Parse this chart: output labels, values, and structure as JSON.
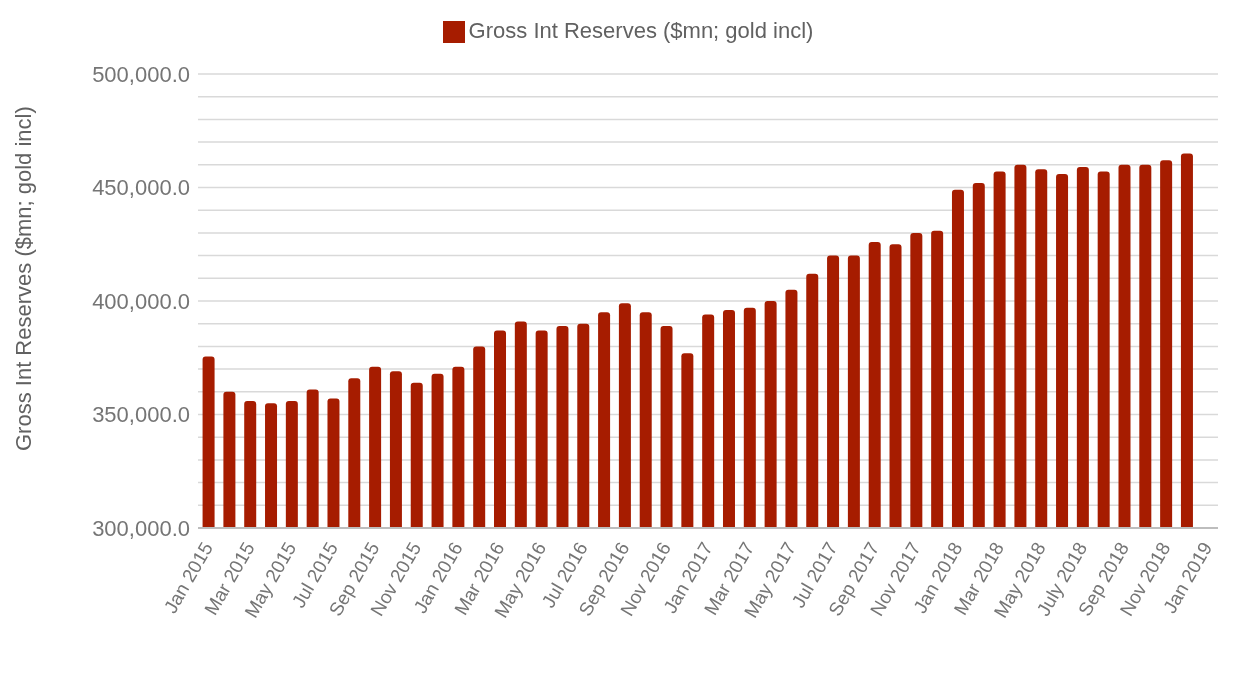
{
  "chart_data": {
    "type": "bar",
    "ylabel": "Gross Int Reserves ($mn; gold incl)",
    "categories": [
      "Jan 2015",
      null,
      "Mar 2015",
      null,
      "May 2015",
      null,
      "Jul 2015",
      null,
      "Sep 2015",
      null,
      "Nov 2015",
      null,
      "Jan 2016",
      null,
      "Mar 2016",
      null,
      "May 2016",
      null,
      "Jul 2016",
      null,
      "Sep 2016",
      null,
      "Nov 2016",
      null,
      "Jan 2017",
      null,
      "Mar 2017",
      null,
      "May 2017",
      null,
      "Jul 2017",
      null,
      "Sep 2017",
      null,
      "Nov 2017",
      null,
      "Jan 2018",
      null,
      "Mar 2018",
      null,
      "May 2018",
      null,
      "July 2018",
      null,
      "Sep 2018",
      null,
      "Nov 2018",
      null,
      "Jan 2019"
    ],
    "series": [
      {
        "name": "Gross Int Reserves ($mn; gold incl)",
        "color": "#a61c00",
        "values": [
          375500,
          360000,
          356000,
          355000,
          356000,
          361000,
          357000,
          366000,
          371000,
          369000,
          364000,
          368000,
          371000,
          380000,
          387000,
          391000,
          387000,
          389000,
          390000,
          395000,
          399000,
          395000,
          389000,
          377000,
          394000,
          396000,
          397000,
          400000,
          405000,
          412000,
          420000,
          420000,
          426000,
          425000,
          430000,
          431000,
          449000,
          452000,
          457000,
          460000,
          458000,
          456000,
          459000,
          457000,
          460000,
          460000,
          462000,
          465000,
          null
        ]
      }
    ],
    "ylim": [
      300000,
      500000
    ],
    "yticks": [
      {
        "value": 300000,
        "label": "300,000.0"
      },
      {
        "value": 310000,
        "label": null
      },
      {
        "value": 320000,
        "label": null
      },
      {
        "value": 330000,
        "label": null
      },
      {
        "value": 340000,
        "label": null
      },
      {
        "value": 350000,
        "label": "350,000.0"
      },
      {
        "value": 360000,
        "label": null
      },
      {
        "value": 370000,
        "label": null
      },
      {
        "value": 380000,
        "label": null
      },
      {
        "value": 390000,
        "label": null
      },
      {
        "value": 400000,
        "label": "400,000.0"
      },
      {
        "value": 410000,
        "label": null
      },
      {
        "value": 420000,
        "label": null
      },
      {
        "value": 430000,
        "label": null
      },
      {
        "value": 440000,
        "label": null
      },
      {
        "value": 450000,
        "label": "450,000.0"
      },
      {
        "value": 460000,
        "label": null
      },
      {
        "value": 470000,
        "label": null
      },
      {
        "value": 480000,
        "label": null
      },
      {
        "value": 490000,
        "label": null
      },
      {
        "value": 500000,
        "label": "500,000.0"
      }
    ],
    "grid": "y",
    "legend": "top"
  }
}
